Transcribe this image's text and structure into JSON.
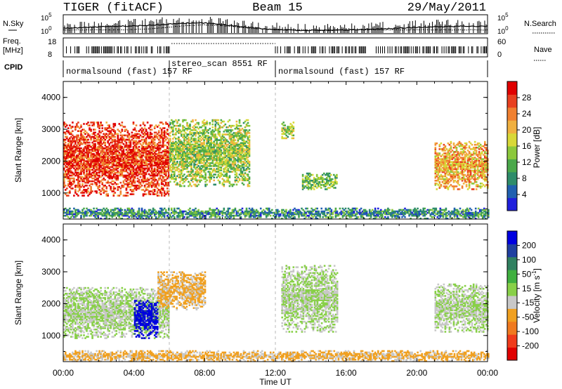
{
  "header": {
    "station": "TIGER (fitACF)",
    "beam": "Beam 15",
    "date": "29/May/2011"
  },
  "top_panels": {
    "nsky_label": "N.Sky",
    "nsearch_label": "N.Search",
    "noise_ticks_left": [
      "10^5",
      "10^0"
    ],
    "noise_ticks_right": [
      "10^5",
      "10^0"
    ],
    "freq_label_line1": "Freq.",
    "freq_label_line2": "[MHz]",
    "freq_ticks": [
      "18",
      "8"
    ],
    "nave_ticks": [
      "60",
      "0"
    ],
    "nave_label": "Nave",
    "cpid_label": "CPID",
    "cpid_segments": [
      {
        "name": "normalsound (fast) 157 RF",
        "start": "00:00",
        "end": "06:00"
      },
      {
        "name": "stereo_scan 8551 RF",
        "start": "06:00",
        "end": "12:00"
      },
      {
        "name": "normalsound (fast) 157 RF",
        "start": "12:00",
        "end": "24:00"
      }
    ]
  },
  "x_axis": {
    "label": "Time UT",
    "ticks": [
      "00:00",
      "04:00",
      "08:00",
      "12:00",
      "16:00",
      "20:00",
      "00:00"
    ]
  },
  "chart_data": [
    {
      "type": "heatmap",
      "panel": "power",
      "ylabel": "Slant Range [km]",
      "xlim": [
        "00:00",
        "24:00"
      ],
      "ylim": [
        180,
        4500
      ],
      "yticks": [
        1000,
        2000,
        3000,
        4000
      ],
      "colorbar": {
        "label": "Power [dB]",
        "ticks": [
          "28",
          "24",
          "20",
          "16",
          "12",
          "8",
          "4"
        ],
        "range": [
          0,
          30
        ],
        "colors": [
          "#2020dc",
          "#2060b0",
          "#2e8c6a",
          "#4aa84a",
          "#8cc83c",
          "#d8d838",
          "#f0b040",
          "#f08030",
          "#e84020",
          "#e00000"
        ]
      },
      "echo_regions": [
        {
          "start": "00:00",
          "end": "06:00",
          "range_min": 900,
          "range_max": 3200,
          "power_db": 26
        },
        {
          "start": "06:00",
          "end": "10:30",
          "range_min": 1200,
          "range_max": 3300,
          "power_db": 14
        },
        {
          "start": "12:20",
          "end": "13:00",
          "range_min": 2700,
          "range_max": 3200,
          "power_db": 14
        },
        {
          "start": "13:30",
          "end": "15:30",
          "range_min": 1100,
          "range_max": 1600,
          "power_db": 12
        },
        {
          "start": "21:00",
          "end": "24:00",
          "range_min": 1100,
          "range_max": 2600,
          "power_db": 20
        },
        {
          "start": "00:00",
          "end": "24:00",
          "range_min": 180,
          "range_max": 500,
          "power_db": 8
        }
      ]
    },
    {
      "type": "heatmap",
      "panel": "velocity",
      "ylabel": "Slant Range [km]",
      "xlim": [
        "00:00",
        "24:00"
      ],
      "ylim": [
        180,
        4500
      ],
      "yticks": [
        1000,
        2000,
        3000,
        4000
      ],
      "colorbar": {
        "label": "Velocity [m s^-1]",
        "ticks": [
          "200",
          "100",
          "50",
          "15",
          "-15",
          "-50",
          "-100",
          "-200"
        ],
        "range": [
          -250,
          250
        ],
        "colors": [
          "#e00000",
          "#f03c1c",
          "#f07a20",
          "#f0a020",
          "#c8c8c8",
          "#88d048",
          "#40b040",
          "#308060",
          "#2040a0",
          "#0000e0"
        ]
      },
      "echo_regions": [
        {
          "start": "00:00",
          "end": "06:00",
          "range_min": 900,
          "range_max": 2500,
          "velocity": 0
        },
        {
          "start": "04:00",
          "end": "05:20",
          "range_min": 900,
          "range_max": 2100,
          "velocity": 220
        },
        {
          "start": "05:20",
          "end": "08:00",
          "range_min": 1800,
          "range_max": 3000,
          "velocity": -60
        },
        {
          "start": "12:20",
          "end": "15:30",
          "range_min": 1100,
          "range_max": 3200,
          "velocity": 0
        },
        {
          "start": "21:00",
          "end": "24:00",
          "range_min": 1100,
          "range_max": 2600,
          "velocity": 0
        },
        {
          "start": "00:00",
          "end": "24:00",
          "range_min": 180,
          "range_max": 500,
          "velocity": -60
        }
      ]
    }
  ]
}
